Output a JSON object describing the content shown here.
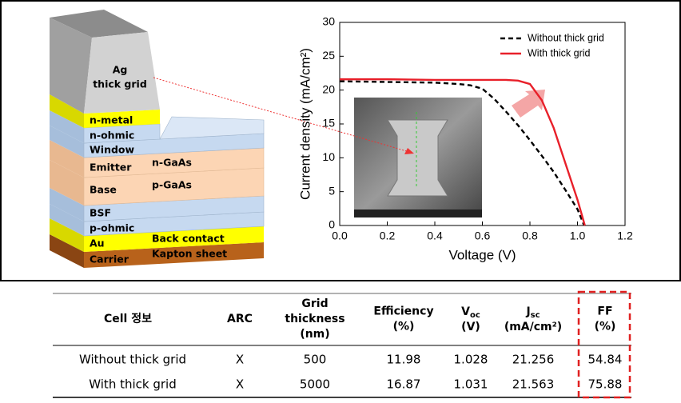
{
  "diagram": {
    "grid_label": [
      "Ag",
      "thick grid"
    ],
    "layers": [
      {
        "label": "n-metal"
      },
      {
        "label": "n-ohmic"
      },
      {
        "label": "Window"
      },
      {
        "label": "Emitter",
        "material": "n-GaAs"
      },
      {
        "label": "Base",
        "material": "p-GaAs"
      },
      {
        "label": "BSF"
      },
      {
        "label": "p-ohmic"
      },
      {
        "label": "Au",
        "material": "Back contact"
      },
      {
        "label": "Carrier",
        "material": "Kapton sheet"
      }
    ]
  },
  "chart_data": {
    "type": "line",
    "xlabel": "Voltage (V)",
    "ylabel": "Current density (mA/cm²)",
    "xlim": [
      0,
      1.2
    ],
    "xticks": [
      {
        "value": 0,
        "label": "0.0"
      },
      0.2,
      0.4,
      0.6,
      0.8,
      {
        "value": 1,
        "label": "1.0"
      },
      1.2
    ],
    "ylim": [
      0,
      30
    ],
    "yticks": [
      0,
      5,
      10,
      15,
      20,
      25,
      30
    ],
    "legend": "upper right",
    "series": [
      {
        "name": "Without thick grid",
        "color": "#000000",
        "dash": true,
        "x": [
          0,
          0.2,
          0.4,
          0.5,
          0.55,
          0.6,
          0.65,
          0.7,
          0.75,
          0.8,
          0.85,
          0.9,
          0.95,
          1.0,
          1.028
        ],
        "values": [
          21.3,
          21.2,
          21.1,
          20.9,
          20.7,
          20.2,
          18.7,
          16.8,
          14.8,
          12.6,
          10.3,
          7.9,
          5.2,
          2.4,
          0
        ]
      },
      {
        "name": "With thick grid",
        "color": "#e8202a",
        "dash": false,
        "x": [
          0,
          0.2,
          0.4,
          0.6,
          0.7,
          0.75,
          0.8,
          0.85,
          0.9,
          0.95,
          1.0,
          1.031
        ],
        "values": [
          21.6,
          21.6,
          21.5,
          21.5,
          21.5,
          21.4,
          20.9,
          18.5,
          14.4,
          9.1,
          3.8,
          0
        ]
      }
    ]
  },
  "table": {
    "headers": [
      {
        "lines": [
          "Cell 정보"
        ]
      },
      {
        "lines": [
          "ARC"
        ]
      },
      {
        "lines": [
          "Grid",
          "thickness",
          "(nm)"
        ]
      },
      {
        "lines": [
          "Efficiency",
          "(%)"
        ]
      },
      {
        "symbol": "V",
        "sub": "oc",
        "unit": "(V)"
      },
      {
        "symbol": "J",
        "sub": "sc",
        "unit": "(mA/cm²)"
      },
      {
        "lines": [
          "FF",
          "(%)"
        ]
      }
    ],
    "rows": [
      [
        "Without thick grid",
        "X",
        500,
        11.98,
        1.028,
        21.256,
        54.84
      ],
      [
        "With thick grid",
        "X",
        5000,
        16.87,
        1.031,
        21.563,
        75.88
      ]
    ]
  }
}
